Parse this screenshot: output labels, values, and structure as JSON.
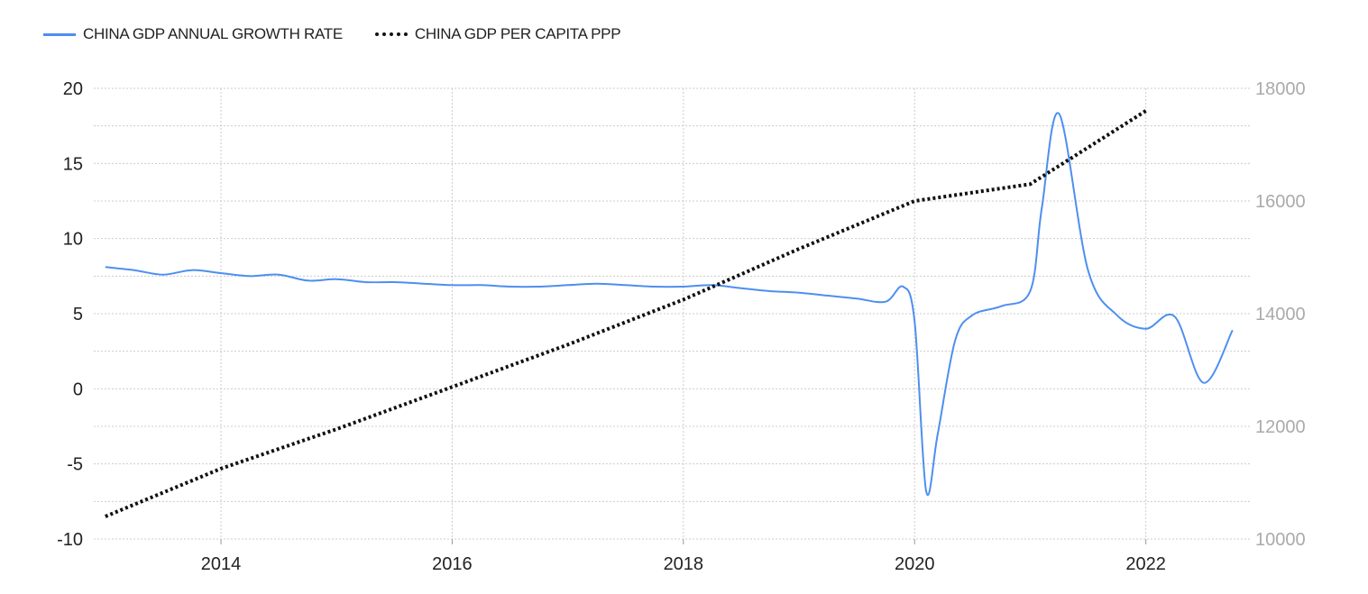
{
  "legend": {
    "series1": "CHINA GDP ANNUAL GROWTH RATE",
    "series2": "CHINA GDP PER CAPITA PPP"
  },
  "colors": {
    "growth_line": "#4d8ff0",
    "ppp_line": "#111111",
    "grid": "#cccccc",
    "right_axis_text": "#aaaaaa"
  },
  "chart_data": {
    "type": "line",
    "grid": true,
    "legend_position": "top-left",
    "x_ticks": [
      2014,
      2016,
      2018,
      2020,
      2022
    ],
    "xlim": [
      2012.9,
      2022.9
    ],
    "left_axis": {
      "ylim": [
        -10,
        20
      ],
      "ticks": [
        -10,
        -5,
        0,
        5,
        10,
        15,
        20
      ]
    },
    "right_axis": {
      "ylim": [
        10000,
        18000
      ],
      "ticks": [
        10000,
        12000,
        14000,
        16000,
        18000
      ]
    },
    "series": [
      {
        "name": "CHINA GDP ANNUAL GROWTH RATE",
        "axis": "left",
        "style": "solid",
        "x": [
          2013.0,
          2013.25,
          2013.5,
          2013.75,
          2014.0,
          2014.25,
          2014.5,
          2014.75,
          2015.0,
          2015.25,
          2015.5,
          2015.75,
          2016.0,
          2016.25,
          2016.5,
          2016.75,
          2017.0,
          2017.25,
          2017.5,
          2017.75,
          2018.0,
          2018.25,
          2018.5,
          2018.75,
          2019.0,
          2019.25,
          2019.5,
          2019.75,
          2019.9,
          2020.0,
          2020.1,
          2020.2,
          2020.35,
          2020.5,
          2020.75,
          2021.0,
          2021.1,
          2021.25,
          2021.5,
          2021.75,
          2022.0,
          2022.25,
          2022.5,
          2022.75
        ],
        "y": [
          8.1,
          7.9,
          7.6,
          7.9,
          7.7,
          7.5,
          7.6,
          7.2,
          7.3,
          7.1,
          7.1,
          7.0,
          6.9,
          6.9,
          6.8,
          6.8,
          6.9,
          7.0,
          6.9,
          6.8,
          6.8,
          6.9,
          6.7,
          6.5,
          6.4,
          6.2,
          6.0,
          5.8,
          6.8,
          4.5,
          -6.8,
          -3.0,
          3.2,
          4.9,
          5.5,
          6.5,
          12.0,
          18.3,
          7.9,
          4.9,
          4.0,
          4.8,
          0.4,
          3.9
        ]
      },
      {
        "name": "CHINA GDP PER CAPITA PPP",
        "axis": "right",
        "style": "dotted",
        "x": [
          2013,
          2014,
          2015,
          2016,
          2017,
          2018,
          2019,
          2020,
          2021,
          2022
        ],
        "y": [
          10400,
          11250,
          11950,
          12700,
          13450,
          14250,
          15150,
          16000,
          16300,
          17600
        ]
      }
    ]
  }
}
